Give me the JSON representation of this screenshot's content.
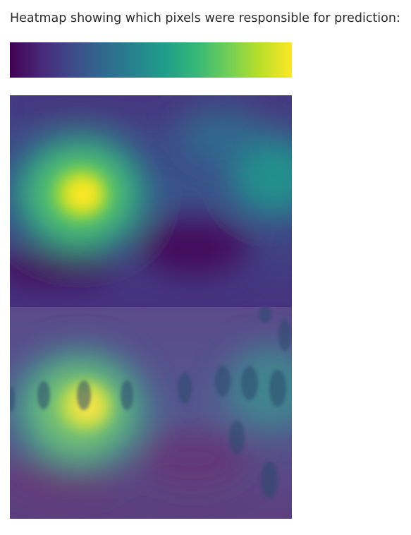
{
  "caption": "Heatmap showing which pixels were responsible for prediction:",
  "colors": {
    "colormap": "viridis",
    "low": "#440154",
    "mid": "#21918c",
    "high": "#fde725"
  },
  "images": {
    "heatmap": "saliency-heatmap",
    "overlay": "heatmap-overlay-on-input-image"
  }
}
